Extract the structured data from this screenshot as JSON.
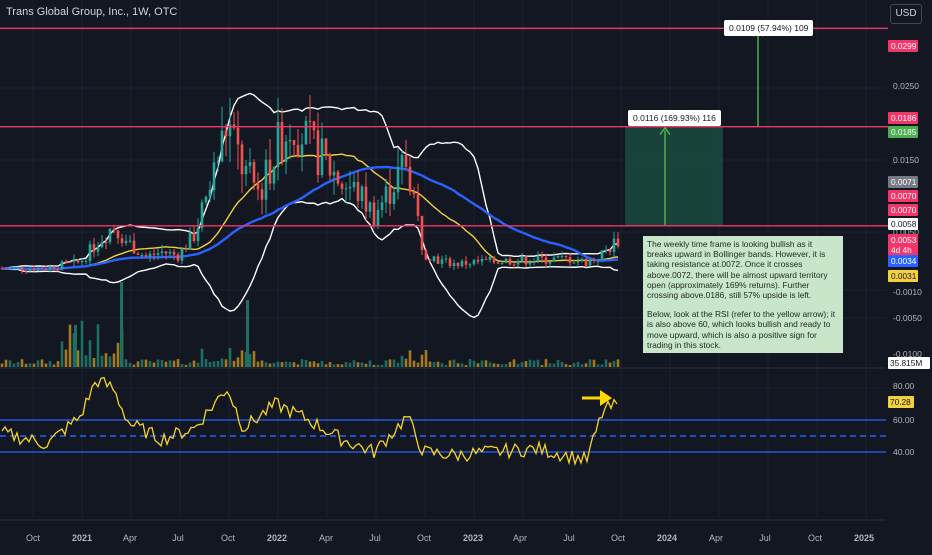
{
  "header": {
    "title": "Trans Global Group, Inc., 1W, OTC",
    "currency_label": "USD"
  },
  "colors": {
    "background": "#131722",
    "resistance_line": "#f23669",
    "up_candle": "#26a69a",
    "down_candle": "#ef5350",
    "bb_band": "#ffffff",
    "ma_yellow": "#f4d03f",
    "ma_blue": "#2962ff",
    "rsi_line": "#f5d327",
    "rsi_band": "#2962ff",
    "measure_fill": "#1b4a3f",
    "measure_arrow": "#4caf50",
    "annotation_bg": "#c8e6c9"
  },
  "price_axis": {
    "ticks": [
      "0.0250",
      "0.0150",
      "0.0050",
      "-0.0010",
      "-0.0050",
      "-0.0100"
    ]
  },
  "price_tags": [
    {
      "value": "0.0299",
      "color": "#f23669"
    },
    {
      "value": "0.0186",
      "color": "#f23669"
    },
    {
      "value": "0.0185",
      "color": "#4caf50"
    },
    {
      "value": "0.0071",
      "color": "#787b86"
    },
    {
      "value": "0.0070",
      "color": "#f23669"
    },
    {
      "value": "0.0070",
      "color": "#f23669"
    },
    {
      "value": "0.0058",
      "color": "#ffffff"
    },
    {
      "value": "0.0053",
      "color": "#f23669"
    },
    {
      "value": "4d 4h",
      "color": "#f23669"
    },
    {
      "value": "0.0034",
      "color": "#2962ff"
    },
    {
      "value": "0.0031",
      "color": "#f4d03f"
    }
  ],
  "volume_tag": "35.815M",
  "rsi_axis": {
    "ticks": [
      "80.00",
      "60.00",
      "40.00"
    ],
    "current": "70.28"
  },
  "time_axis": {
    "labels": [
      "Oct",
      "2021",
      "Apr",
      "Jul",
      "Oct",
      "2022",
      "Apr",
      "Jul",
      "Oct",
      "2023",
      "Apr",
      "Jul",
      "Oct",
      "2024",
      "Apr",
      "Jul",
      "Oct",
      "2025"
    ]
  },
  "measure_labels": {
    "upper": "0.0109 (57.94%) 109",
    "lower": "0.0116 (169.93%) 116"
  },
  "annotation": {
    "paragraph1": "The weekly time frame is looking bullish as it breaks upward in Bollinger bands. However, it is taking resistance at.0072. Once it crosses above.0072, there will be almost upward territory open (approximately 169% returns). Further crossing above.0186, still 57% upside is left.",
    "paragraph2": "Below, look at the RSI (refer to the yellow arrow); it is also above 60, which looks bullish and ready to move upward, which is also a positive sign for trading in this stock."
  },
  "chart_data": [
    {
      "type": "candlestick",
      "title": "Trans Global Group, Inc., 1W, OTC",
      "y_unit": "USD",
      "resistance_levels": [
        0.0299,
        0.0186,
        0.0072
      ],
      "price_path": [
        [
          "2020-09",
          0.0023
        ],
        [
          "2020-11",
          0.0024
        ],
        [
          "2021-01",
          0.003
        ],
        [
          "2021-02",
          0.0052
        ],
        [
          "2021-03",
          0.0072
        ],
        [
          "2021-04",
          0.0052
        ],
        [
          "2021-05",
          0.0036
        ],
        [
          "2021-06",
          0.0042
        ],
        [
          "2021-07",
          0.0038
        ],
        [
          "2021-08",
          0.0062
        ],
        [
          "2021-09",
          0.012
        ],
        [
          "2021-10",
          0.019
        ],
        [
          "2021-11",
          0.0135
        ],
        [
          "2021-12",
          0.011
        ],
        [
          "2022-01",
          0.016
        ],
        [
          "2022-02",
          0.0195
        ],
        [
          "2022-03",
          0.0165
        ],
        [
          "2022-04",
          0.0145
        ],
        [
          "2022-05",
          0.0122
        ],
        [
          "2022-06",
          0.011
        ],
        [
          "2022-07",
          0.0085
        ],
        [
          "2022-08",
          0.0115
        ],
        [
          "2022-09",
          0.015
        ],
        [
          "2022-10",
          0.0042
        ],
        [
          "2022-11",
          0.0032
        ],
        [
          "2022-12",
          0.0028
        ],
        [
          "2023-01",
          0.003
        ],
        [
          "2023-03",
          0.0032
        ],
        [
          "2023-05",
          0.0033
        ],
        [
          "2023-07",
          0.0034
        ],
        [
          "2023-08",
          0.003
        ],
        [
          "2023-09",
          0.004
        ],
        [
          "2023-10",
          0.0058
        ]
      ],
      "rsi_path": [
        [
          "2020-09",
          50
        ],
        [
          "2020-11",
          45
        ],
        [
          "2021-01",
          62
        ],
        [
          "2021-02",
          85
        ],
        [
          "2021-03",
          80
        ],
        [
          "2021-04",
          58
        ],
        [
          "2021-06",
          48
        ],
        [
          "2021-08",
          55
        ],
        [
          "2021-10",
          80
        ],
        [
          "2021-11",
          55
        ],
        [
          "2022-01",
          70
        ],
        [
          "2022-03",
          60
        ],
        [
          "2022-05",
          48
        ],
        [
          "2022-07",
          40
        ],
        [
          "2022-09",
          62
        ],
        [
          "2022-10",
          40
        ],
        [
          "2022-12",
          38
        ],
        [
          "2023-02",
          40
        ],
        [
          "2023-05",
          42
        ],
        [
          "2023-08",
          35
        ],
        [
          "2023-09",
          66
        ],
        [
          "2023-10",
          70
        ]
      ],
      "rsi_levels": [
        80,
        60,
        50,
        40
      ]
    }
  ]
}
